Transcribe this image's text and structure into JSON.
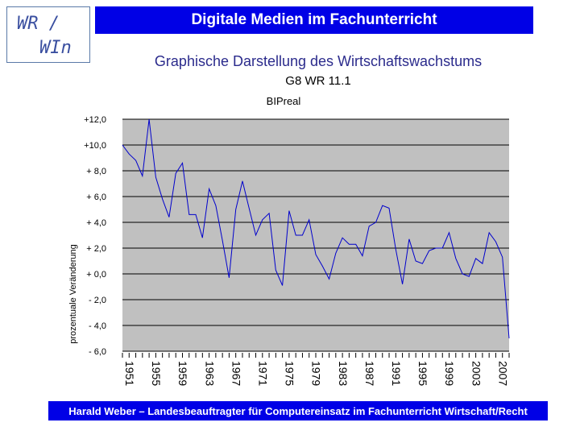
{
  "logo": {
    "line1": "WR /",
    "line2": "WIn"
  },
  "header": {
    "title": "Digitale Medien im Fachunterricht"
  },
  "subtitle": "Graphische Darstellung des Wirtschaftswachstums",
  "class_label": "G8 WR 11.1",
  "footer": {
    "text": "Harald Weber – Landesbeauftragter für Computereinsatz im Fachunterricht Wirtschaft/Recht"
  },
  "colors": {
    "accent": "#0000e6",
    "plot_bg": "#c0c0c0",
    "line": "#0000cc"
  },
  "chart_data": {
    "type": "line",
    "title": "BIPreal",
    "xlabel": "",
    "ylabel": "prozentuale Veränderung",
    "ylim": [
      -6,
      12
    ],
    "xlim": [
      1951,
      2009
    ],
    "grid": true,
    "y_tick_values": [
      12,
      10,
      8,
      6,
      4,
      2,
      0,
      -2,
      -4,
      -6
    ],
    "y_tick_labels": [
      "+12,0",
      "+10,0",
      "+ 8,0",
      "+ 6,0",
      "+ 4,0",
      "+ 2,0",
      "+ 0,0",
      "- 2,0",
      "- 4,0",
      "- 6,0"
    ],
    "x_tick_labels": [
      "1951",
      "1955",
      "1959",
      "1963",
      "1967",
      "1971",
      "1975",
      "1979",
      "1983",
      "1987",
      "1991",
      "1995",
      "1999",
      "2003",
      "2007"
    ],
    "series": [
      {
        "x": [
          1951,
          1952,
          1953,
          1954,
          1955,
          1956,
          1957,
          1958,
          1959,
          1960,
          1961,
          1962,
          1963,
          1964,
          1965,
          1966,
          1967,
          1968,
          1969,
          1970,
          1971,
          1972,
          1973,
          1974,
          1975,
          1976,
          1977,
          1978,
          1979,
          1980,
          1981,
          1982,
          1983,
          1984,
          1985,
          1986,
          1987,
          1988,
          1989,
          1990,
          1991,
          1992,
          1993,
          1994,
          1995,
          1996,
          1997,
          1998,
          1999,
          2000,
          2001,
          2002,
          2003,
          2004,
          2005,
          2006,
          2007,
          2008,
          2009
        ],
        "values": [
          10.0,
          9.3,
          8.8,
          7.6,
          12.0,
          7.5,
          5.8,
          4.4,
          7.8,
          8.6,
          4.6,
          4.6,
          2.8,
          6.6,
          5.3,
          2.6,
          -0.3,
          5.0,
          7.2,
          5.1,
          3.0,
          4.2,
          4.7,
          0.3,
          -0.9,
          4.9,
          3.0,
          3.0,
          4.2,
          1.5,
          0.6,
          -0.4,
          1.6,
          2.8,
          2.3,
          2.3,
          1.4,
          3.7,
          4.0,
          5.3,
          5.1,
          1.9,
          -0.8,
          2.7,
          1.0,
          0.8,
          1.8,
          2.0,
          2.0,
          3.2,
          1.2,
          0.0,
          -0.2,
          1.2,
          0.8,
          3.2,
          2.5,
          1.3,
          -5.0
        ]
      }
    ]
  }
}
